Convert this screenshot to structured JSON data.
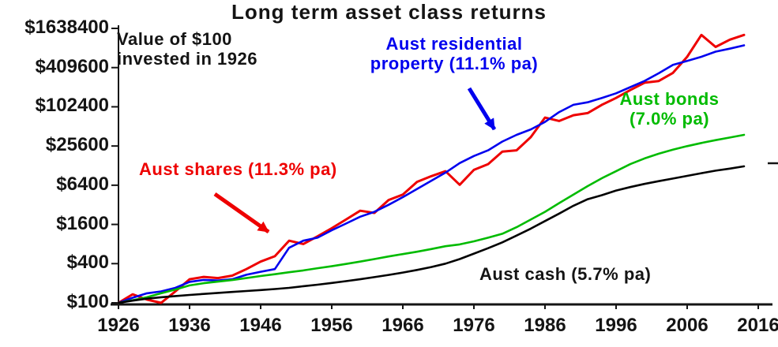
{
  "chart_data": {
    "type": "line",
    "title": "Long term asset class returns",
    "note": "Value of $100\ninvested in 1926",
    "x_axis": {
      "label": "",
      "range": [
        1926,
        2016
      ]
    },
    "y_axis": {
      "label": "",
      "scale": "log",
      "log_base": 4,
      "range": [
        100,
        1638400
      ]
    },
    "y_ticks": [
      {
        "value": 100,
        "label": "$100"
      },
      {
        "value": 400,
        "label": "$400"
      },
      {
        "value": 1600,
        "label": "$1600"
      },
      {
        "value": 6400,
        "label": "$6400"
      },
      {
        "value": 25600,
        "label": "$25600"
      },
      {
        "value": 102400,
        "label": "$102400"
      },
      {
        "value": 409600,
        "label": "$409600"
      },
      {
        "value": 1638400,
        "label": "$1638400"
      }
    ],
    "x_ticks": [
      {
        "value": 1926,
        "label": "1926"
      },
      {
        "value": 1936,
        "label": "1936"
      },
      {
        "value": 1946,
        "label": "1946"
      },
      {
        "value": 1956,
        "label": "1956"
      },
      {
        "value": 1966,
        "label": "1966"
      },
      {
        "value": 1976,
        "label": "1976"
      },
      {
        "value": 1986,
        "label": "1986"
      },
      {
        "value": 1996,
        "label": "1996"
      },
      {
        "value": 2006,
        "label": "2006"
      },
      {
        "value": 2016,
        "label": "2016"
      }
    ],
    "x": [
      1926,
      1928,
      1930,
      1932,
      1934,
      1936,
      1938,
      1940,
      1942,
      1944,
      1946,
      1948,
      1950,
      1952,
      1954,
      1956,
      1958,
      1960,
      1962,
      1964,
      1966,
      1968,
      1970,
      1972,
      1974,
      1976,
      1978,
      1980,
      1982,
      1984,
      1986,
      1988,
      1990,
      1992,
      1994,
      1996,
      1998,
      2000,
      2002,
      2004,
      2006,
      2008,
      2010,
      2012,
      2014
    ],
    "series": [
      {
        "name": "Aust shares",
        "annual_return": "11.3% pa",
        "color": "#ee0000",
        "width": 3,
        "values": [
          100,
          135,
          112,
          100,
          150,
          230,
          250,
          240,
          262,
          330,
          430,
          520,
          900,
          800,
          1050,
          1400,
          1900,
          2600,
          2400,
          3800,
          4600,
          7200,
          8800,
          10500,
          6500,
          11000,
          13500,
          21000,
          22000,
          35000,
          70000,
          62000,
          76000,
          82000,
          110000,
          140000,
          185000,
          240000,
          255000,
          340000,
          600000,
          1300000,
          850000,
          1100000,
          1300000
        ]
      },
      {
        "name": "Aust residential property",
        "annual_return": "11.1% pa",
        "color": "#0000ee",
        "width": 2.6,
        "values": [
          100,
          120,
          140,
          150,
          170,
          210,
          225,
          220,
          230,
          270,
          300,
          330,
          700,
          900,
          1000,
          1300,
          1650,
          2100,
          2500,
          3200,
          4200,
          5600,
          7500,
          10000,
          14000,
          18000,
          22000,
          30000,
          38000,
          46000,
          60000,
          85000,
          110000,
          120000,
          140000,
          165000,
          205000,
          255000,
          335000,
          450000,
          520000,
          600000,
          720000,
          800000,
          900000
        ]
      },
      {
        "name": "Aust bonds",
        "annual_return": "7.0% pa",
        "color": "#00bb00",
        "width": 2.6,
        "values": [
          100,
          110,
          122,
          140,
          160,
          185,
          200,
          212,
          224,
          240,
          258,
          275,
          295,
          315,
          340,
          365,
          395,
          430,
          470,
          515,
          560,
          610,
          670,
          740,
          790,
          880,
          1000,
          1150,
          1450,
          1900,
          2500,
          3400,
          4600,
          6200,
          8200,
          10500,
          13500,
          16500,
          19500,
          22500,
          25500,
          28500,
          31500,
          34500,
          38000
        ]
      },
      {
        "name": "Aust cash",
        "annual_return": "5.7% pa",
        "color": "#000000",
        "width": 2.6,
        "values": [
          100,
          108,
          116,
          122,
          127,
          132,
          137,
          142,
          147,
          152,
          157,
          163,
          170,
          180,
          190,
          202,
          215,
          230,
          248,
          268,
          292,
          320,
          355,
          400,
          470,
          570,
          690,
          850,
          1080,
          1380,
          1800,
          2350,
          3100,
          3900,
          4500,
          5300,
          6000,
          6700,
          7400,
          8100,
          8900,
          9800,
          10700,
          11500,
          12500
        ]
      }
    ],
    "annotations": {
      "invested_note": "Value of $100\ninvested in 1926",
      "shares_label": "Aust shares (11.3% pa)",
      "property_label": "Aust residential\nproperty (11.1% pa)",
      "bonds_label": "Aust bonds\n(7.0% pa)",
      "cash_label": "Aust cash (5.7% pa)"
    },
    "colors": {
      "shares": "#ee0000",
      "property": "#0000ee",
      "bonds": "#00bb00",
      "cash": "#000000",
      "axis": "#141414"
    },
    "legend_position": "inline-annotations",
    "grid": false
  }
}
